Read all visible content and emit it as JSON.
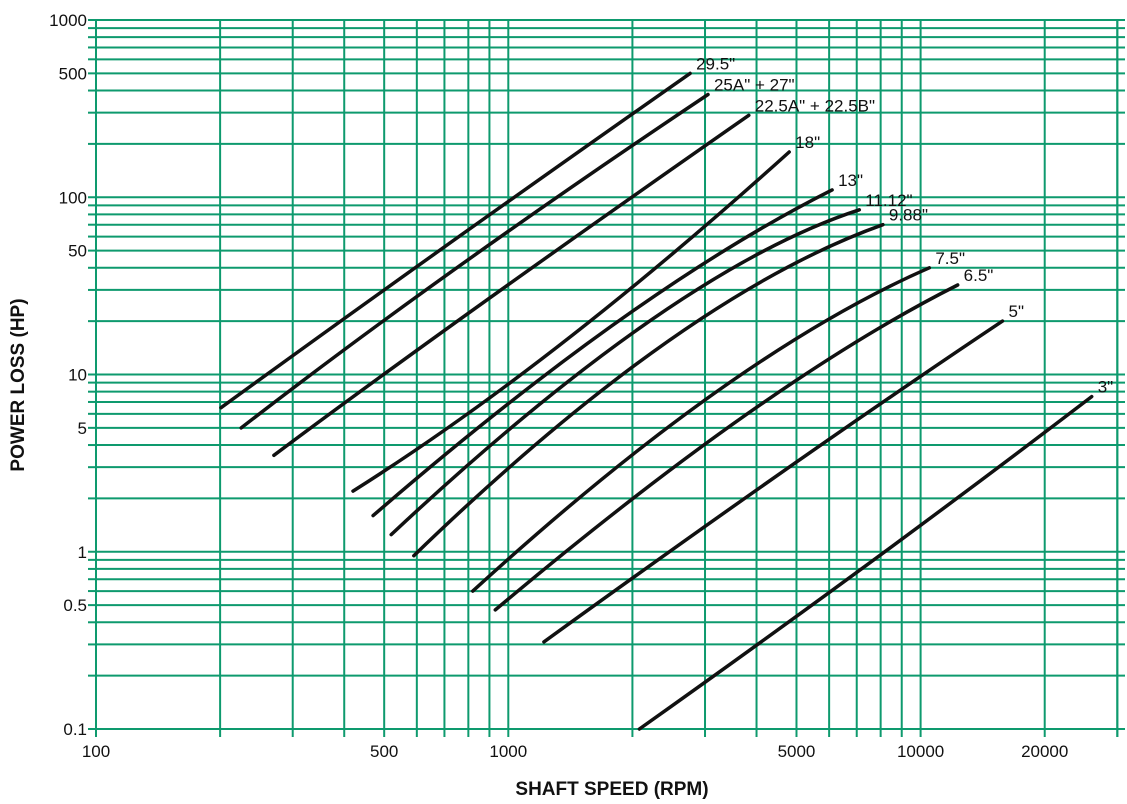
{
  "chart_data": {
    "type": "line",
    "title": "",
    "xlabel": "SHAFT SPEED (RPM)",
    "ylabel": "POWER LOSS (HP)",
    "x_scale": "log",
    "y_scale": "log",
    "xlim": [
      100,
      30000
    ],
    "ylim": [
      0.1,
      1000
    ],
    "grid": true,
    "legend": "none",
    "colors": {
      "grid": "#0e9a6e",
      "line": "#111111"
    },
    "x_ticks": [
      {
        "value": 100,
        "label": "100"
      },
      {
        "value": 500,
        "label": "500"
      },
      {
        "value": 1000,
        "label": "1000"
      },
      {
        "value": 5000,
        "label": "5000"
      },
      {
        "value": 10000,
        "label": "10000"
      },
      {
        "value": 20000,
        "label": "20000"
      }
    ],
    "y_ticks": [
      {
        "value": 0.1,
        "label": "0.1"
      },
      {
        "value": 0.5,
        "label": "0.5"
      },
      {
        "value": 1,
        "label": "1"
      },
      {
        "value": 5,
        "label": "5"
      },
      {
        "value": 10,
        "label": "10"
      },
      {
        "value": 50,
        "label": "50"
      },
      {
        "value": 100,
        "label": "100"
      },
      {
        "value": 500,
        "label": "500"
      },
      {
        "value": 1000,
        "label": "1000"
      }
    ],
    "series": [
      {
        "name": "29.5\"",
        "x": [
          201,
          680,
          2760
        ],
        "y": [
          6.5,
          50,
          500
        ]
      },
      {
        "name": "25A\" + 27\"",
        "x": [
          225,
          750,
          3050
        ],
        "y": [
          5,
          40,
          380
        ]
      },
      {
        "name": "22.5A\" + 22.5B\"",
        "x": [
          270,
          860,
          3830
        ],
        "y": [
          3.5,
          25,
          290
        ]
      },
      {
        "name": "18\"",
        "x": [
          420,
          1350,
          4800
        ],
        "y": [
          2.2,
          15,
          180
        ]
      },
      {
        "name": "13\"",
        "x": [
          470,
          1850,
          6100
        ],
        "y": [
          1.6,
          20,
          110
        ]
      },
      {
        "name": "11.12\"",
        "x": [
          520,
          2200,
          7100
        ],
        "y": [
          1.25,
          20,
          85
        ]
      },
      {
        "name": "9.88\"",
        "x": [
          590,
          2400,
          8100
        ],
        "y": [
          0.95,
          15,
          70
        ]
      },
      {
        "name": "7.5\"",
        "x": [
          820,
          3200,
          10500
        ],
        "y": [
          0.6,
          8,
          40
        ]
      },
      {
        "name": "6.5\"",
        "x": [
          930,
          3800,
          12300
        ],
        "y": [
          0.47,
          6,
          32
        ]
      },
      {
        "name": "5\"",
        "x": [
          1220,
          4800,
          15800
        ],
        "y": [
          0.31,
          3,
          20
        ]
      },
      {
        "name": "3\"",
        "x": [
          2080,
          7700,
          26000
        ],
        "y": [
          0.1,
          0.9,
          7.5
        ]
      }
    ]
  }
}
